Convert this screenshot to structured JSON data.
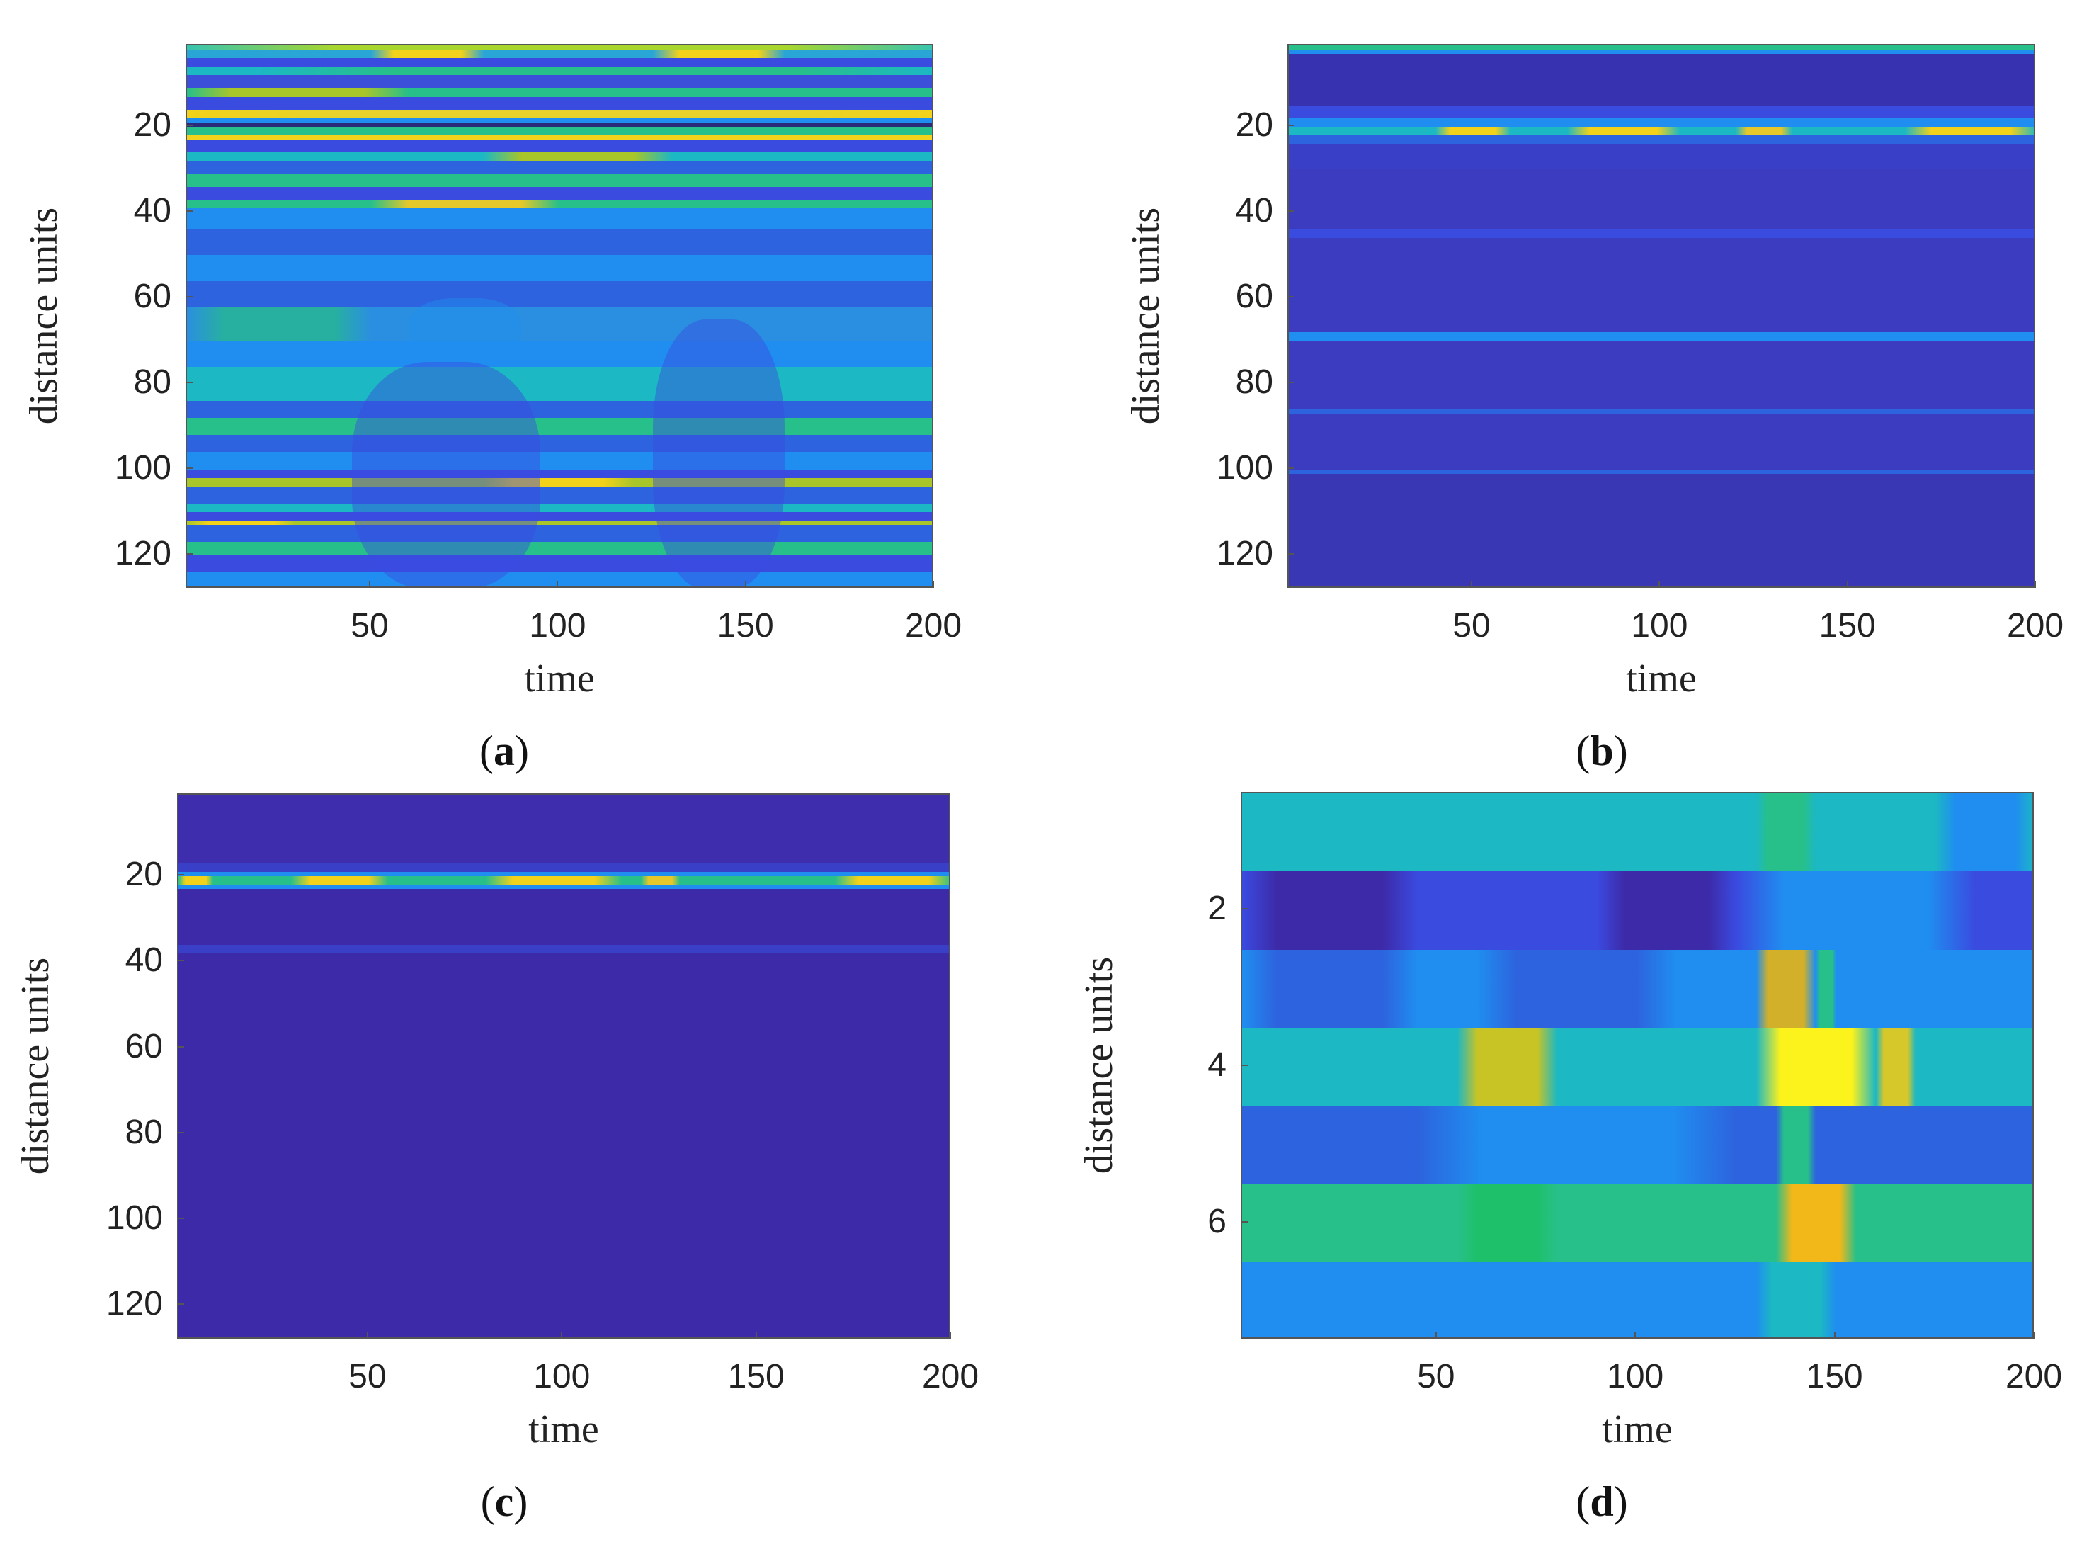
{
  "figure": {
    "background": "#ffffff",
    "colormap": [
      "#3b2aa8",
      "#3a4be0",
      "#1f8ef0",
      "#1cb8c4",
      "#27c08a",
      "#a8c52a",
      "#f2d21a",
      "#fcf21c"
    ]
  },
  "chart_data": [
    {
      "id": "a",
      "type": "heatmap",
      "caption_letter": "a",
      "caption_paren_open": "(",
      "caption_paren_close": ")",
      "xlabel": "time",
      "ylabel": "distance units",
      "xlim": [
        1,
        200
      ],
      "ylim": [
        1,
        128
      ],
      "x_ticks": [
        "50",
        "100",
        "150",
        "200"
      ],
      "y_ticks": [
        "20",
        "40",
        "60",
        "80",
        "100",
        "120"
      ],
      "x_tick_values": [
        50,
        100,
        150,
        200
      ],
      "y_tick_values": [
        20,
        40,
        60,
        80,
        100,
        120
      ],
      "base_color": "#2f7fe8",
      "rows": [
        {
          "y0": 1,
          "y1": 2,
          "color": "#37c4b0",
          "hot": [
            [
              1,
              200,
              "#a9d62c"
            ]
          ]
        },
        {
          "y0": 2,
          "y1": 4,
          "color": "#2aa6d6",
          "hot": [
            [
              50,
              80,
              "#f2d21a"
            ],
            [
              125,
              160,
              "#f2d21a"
            ]
          ]
        },
        {
          "y0": 4,
          "y1": 6,
          "color": "#3a4be0"
        },
        {
          "y0": 6,
          "y1": 8,
          "color": "#1cb8c4",
          "hot": [
            [
              20,
              200,
              "#27c08a"
            ]
          ]
        },
        {
          "y0": 8,
          "y1": 11,
          "color": "#3b4fd8"
        },
        {
          "y0": 11,
          "y1": 13,
          "color": "#27c08a",
          "hot": [
            [
              1,
              60,
              "#a8c52a"
            ]
          ]
        },
        {
          "y0": 13,
          "y1": 16,
          "color": "#3a4be0"
        },
        {
          "y0": 16,
          "y1": 18,
          "color": "#f2d21a",
          "hot": [
            [
              1,
              200,
              "#e6d22a"
            ]
          ]
        },
        {
          "y0": 18,
          "y1": 19,
          "color": "#1f8ef0"
        },
        {
          "y0": 19,
          "y1": 20,
          "color": "#2a2a7a"
        },
        {
          "y0": 20,
          "y1": 22,
          "color": "#27c08a"
        },
        {
          "y0": 22,
          "y1": 23,
          "color": "#f2d21a"
        },
        {
          "y0": 23,
          "y1": 26,
          "color": "#3a4be0"
        },
        {
          "y0": 26,
          "y1": 28,
          "color": "#1cb8c4",
          "hot": [
            [
              80,
              130,
              "#a8c52a"
            ]
          ]
        },
        {
          "y0": 28,
          "y1": 31,
          "color": "#2d63de"
        },
        {
          "y0": 31,
          "y1": 34,
          "color": "#27c08a"
        },
        {
          "y0": 34,
          "y1": 37,
          "color": "#3a4be0"
        },
        {
          "y0": 37,
          "y1": 39,
          "color": "#27c08a",
          "hot": [
            [
              50,
              100,
              "#e6c82a"
            ]
          ]
        },
        {
          "y0": 39,
          "y1": 44,
          "color": "#1f8ef0"
        },
        {
          "y0": 44,
          "y1": 50,
          "color": "#2d63de"
        },
        {
          "y0": 50,
          "y1": 56,
          "color": "#1f8ef0"
        },
        {
          "y0": 56,
          "y1": 62,
          "color": "#2d63de"
        },
        {
          "y0": 62,
          "y1": 70,
          "color": "#2a8fe0",
          "hot": [
            [
              1,
              50,
              "#27b0a0"
            ]
          ]
        },
        {
          "y0": 70,
          "y1": 76,
          "color": "#1f8ef0"
        },
        {
          "y0": 76,
          "y1": 84,
          "color": "#1cb8c4"
        },
        {
          "y0": 84,
          "y1": 88,
          "color": "#2d63de"
        },
        {
          "y0": 88,
          "y1": 92,
          "color": "#27c08a"
        },
        {
          "y0": 92,
          "y1": 96,
          "color": "#2d63de"
        },
        {
          "y0": 96,
          "y1": 100,
          "color": "#1f8ef0"
        },
        {
          "y0": 100,
          "y1": 102,
          "color": "#3a4be0"
        },
        {
          "y0": 102,
          "y1": 104,
          "color": "#a8c52a",
          "hot": [
            [
              80,
              120,
              "#f2d21a"
            ]
          ]
        },
        {
          "y0": 104,
          "y1": 108,
          "color": "#2d63de"
        },
        {
          "y0": 108,
          "y1": 110,
          "color": "#1cb8c4"
        },
        {
          "y0": 110,
          "y1": 112,
          "color": "#3a4be0"
        },
        {
          "y0": 112,
          "y1": 113,
          "color": "#a8c52a",
          "hot": [
            [
              1,
              30,
              "#f2d21a"
            ]
          ]
        },
        {
          "y0": 113,
          "y1": 117,
          "color": "#2d63de"
        },
        {
          "y0": 117,
          "y1": 120,
          "color": "#27c08a"
        },
        {
          "y0": 120,
          "y1": 124,
          "color": "#3a4be0"
        },
        {
          "y0": 124,
          "y1": 128,
          "color": "#1f8ef0"
        }
      ],
      "blobs": [
        {
          "x0": 45,
          "x1": 95,
          "y0": 75,
          "y1": 128,
          "color": "#3a4be0"
        },
        {
          "x0": 125,
          "x1": 160,
          "y0": 65,
          "y1": 128,
          "color": "#3a4be0"
        },
        {
          "x0": 60,
          "x1": 90,
          "y0": 60,
          "y1": 75,
          "color": "#1f8ef0"
        }
      ]
    },
    {
      "id": "b",
      "type": "heatmap",
      "caption_letter": "b",
      "caption_paren_open": "(",
      "caption_paren_close": ")",
      "xlabel": "time",
      "ylabel": "distance units",
      "xlim": [
        1,
        200
      ],
      "ylim": [
        1,
        128
      ],
      "x_ticks": [
        "50",
        "100",
        "150",
        "200"
      ],
      "y_ticks": [
        "20",
        "40",
        "60",
        "80",
        "100",
        "120"
      ],
      "x_tick_values": [
        50,
        100,
        150,
        200
      ],
      "y_tick_values": [
        20,
        40,
        60,
        80,
        100,
        120
      ],
      "base_color": "#3a37b4",
      "rows": [
        {
          "y0": 1,
          "y1": 2,
          "color": "#27c08a"
        },
        {
          "y0": 2,
          "y1": 3,
          "color": "#1f8ef0"
        },
        {
          "y0": 3,
          "y1": 15,
          "color": "#3632b0"
        },
        {
          "y0": 15,
          "y1": 18,
          "color": "#3a4be0"
        },
        {
          "y0": 18,
          "y1": 20,
          "color": "#1f8ef0"
        },
        {
          "y0": 20,
          "y1": 22,
          "color": "#1cb8c4",
          "hot": [
            [
              40,
              60,
              "#f2d21a"
            ],
            [
              75,
              105,
              "#f2d21a"
            ],
            [
              120,
              135,
              "#e6c82a"
            ],
            [
              165,
              200,
              "#f2d21a"
            ]
          ]
        },
        {
          "y0": 22,
          "y1": 24,
          "color": "#2d63de"
        },
        {
          "y0": 24,
          "y1": 30,
          "color": "#3a3fc8"
        },
        {
          "y0": 30,
          "y1": 44,
          "color": "#3b3cbf"
        },
        {
          "y0": 44,
          "y1": 46,
          "color": "#3a4be0"
        },
        {
          "y0": 46,
          "y1": 68,
          "color": "#3b3cbf"
        },
        {
          "y0": 68,
          "y1": 70,
          "color": "#1f8ef0"
        },
        {
          "y0": 70,
          "y1": 86,
          "color": "#3b3cbf"
        },
        {
          "y0": 86,
          "y1": 87,
          "color": "#2d63de"
        },
        {
          "y0": 87,
          "y1": 100,
          "color": "#3b3cbf"
        },
        {
          "y0": 100,
          "y1": 101,
          "color": "#2d63de"
        },
        {
          "y0": 101,
          "y1": 128,
          "color": "#3a37b4"
        }
      ],
      "blobs": []
    },
    {
      "id": "c",
      "type": "heatmap",
      "caption_letter": "c",
      "caption_paren_open": "(",
      "caption_paren_close": ")",
      "xlabel": "time",
      "ylabel": "distance units",
      "xlim": [
        1,
        200
      ],
      "ylim": [
        1,
        128
      ],
      "x_ticks": [
        "50",
        "100",
        "150",
        "200"
      ],
      "y_ticks": [
        "20",
        "40",
        "60",
        "80",
        "100",
        "120"
      ],
      "x_tick_values": [
        50,
        100,
        150,
        200
      ],
      "y_tick_values": [
        20,
        40,
        60,
        80,
        100,
        120
      ],
      "base_color": "#3d2aa8",
      "rows": [
        {
          "y0": 1,
          "y1": 17,
          "color": "#3e2eae"
        },
        {
          "y0": 17,
          "y1": 19,
          "color": "#3a3fc8"
        },
        {
          "y0": 19,
          "y1": 20,
          "color": "#1f8ef0"
        },
        {
          "y0": 20,
          "y1": 22,
          "color": "#27c08a",
          "hot": [
            [
              1,
              10,
              "#f2d21a"
            ],
            [
              30,
              55,
              "#f2d21a"
            ],
            [
              80,
              115,
              "#f2d21a"
            ],
            [
              120,
              130,
              "#e6c82a"
            ],
            [
              170,
              200,
              "#f2d21a"
            ]
          ]
        },
        {
          "y0": 22,
          "y1": 23,
          "color": "#1f8ef0"
        },
        {
          "y0": 23,
          "y1": 36,
          "color": "#3d2aa8"
        },
        {
          "y0": 36,
          "y1": 38,
          "color": "#3a3fc8"
        },
        {
          "y0": 38,
          "y1": 128,
          "color": "#3d2aa8"
        }
      ],
      "blobs": []
    },
    {
      "id": "d",
      "type": "heatmap",
      "caption_letter": "d",
      "caption_paren_open": "(",
      "caption_paren_close": ")",
      "xlabel": "time",
      "ylabel": "distance units",
      "xlim": [
        1,
        200
      ],
      "ylim": [
        0.5,
        7.5
      ],
      "x_ticks": [
        "50",
        "100",
        "150",
        "200"
      ],
      "y_ticks": [
        "2",
        "4",
        "6"
      ],
      "x_tick_values": [
        50,
        100,
        150,
        200
      ],
      "y_tick_values": [
        2,
        4,
        6
      ],
      "base_color": "#1f8ef0",
      "rows": [
        {
          "y0": 0.5,
          "y1": 1.5,
          "color": "#1cb8c4",
          "hot": [
            [
              130,
              145,
              "#27c08a"
            ],
            [
              175,
              200,
              "#1f8ef0"
            ]
          ]
        },
        {
          "y0": 1.5,
          "y1": 2.5,
          "color": "#3a4be0",
          "hot": [
            [
              1,
              45,
              "#3d2aa8"
            ],
            [
              90,
              125,
              "#3d2aa8"
            ],
            [
              125,
              185,
              "#1f8ef0"
            ]
          ]
        },
        {
          "y0": 2.5,
          "y1": 3.5,
          "color": "#1f8ef0",
          "hot": [
            [
              1,
              45,
              "#2d63de"
            ],
            [
              60,
              110,
              "#2d63de"
            ],
            [
              130,
              145,
              "#d2b02a"
            ],
            [
              145,
              150,
              "#27c08a"
            ]
          ]
        },
        {
          "y0": 3.5,
          "y1": 4.5,
          "color": "#1cb8c4",
          "hot": [
            [
              55,
              80,
              "#c8c426"
            ],
            [
              130,
              160,
              "#fcf21c"
            ],
            [
              160,
              170,
              "#d6c82a"
            ]
          ]
        },
        {
          "y0": 4.5,
          "y1": 5.5,
          "color": "#2d63de",
          "hot": [
            [
              45,
              125,
              "#1f8ef0"
            ],
            [
              135,
              145,
              "#27c08a"
            ]
          ]
        },
        {
          "y0": 5.5,
          "y1": 6.5,
          "color": "#27c08a",
          "hot": [
            [
              55,
              80,
              "#1ec06a"
            ],
            [
              135,
              155,
              "#f2b81a"
            ]
          ]
        },
        {
          "y0": 6.5,
          "y1": 7.5,
          "color": "#1f8ef0",
          "hot": [
            [
              130,
              150,
              "#1cb8c4"
            ]
          ]
        }
      ],
      "blobs": []
    }
  ]
}
